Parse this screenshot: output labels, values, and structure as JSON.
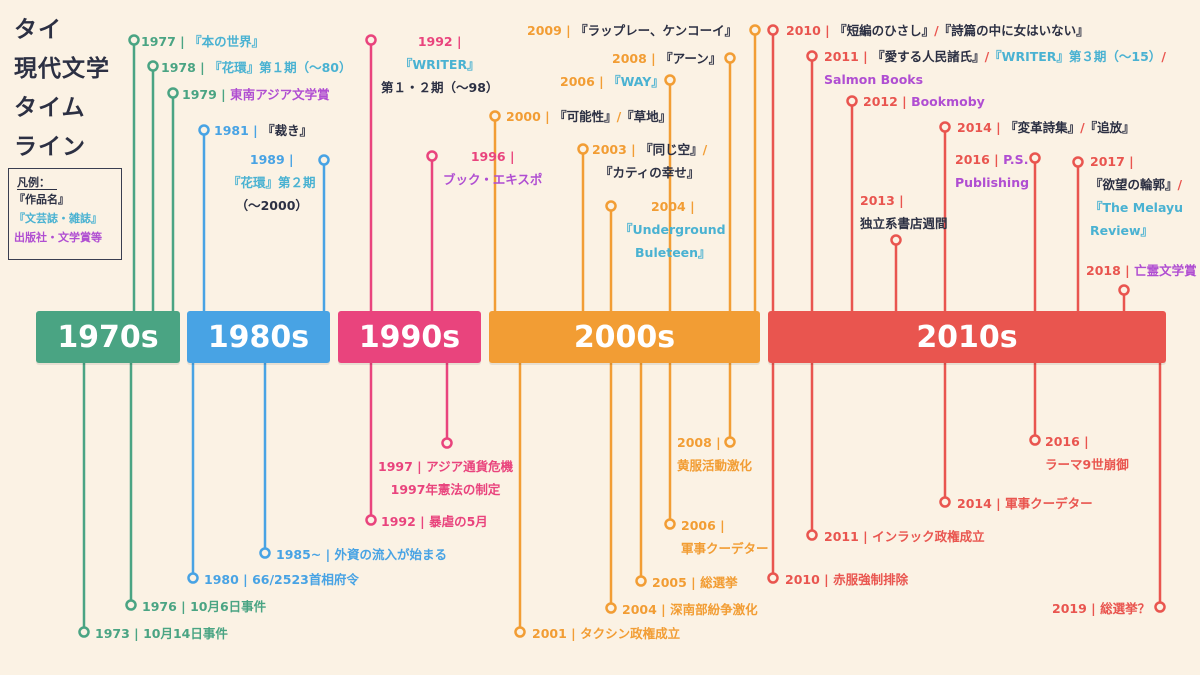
{
  "title": [
    "タイ",
    "現代文学",
    "タイム",
    "ライン"
  ],
  "legend": {
    "heading": "凡例：",
    "work": "『作品名』",
    "magazine": "『文芸誌・雑誌』",
    "publisher": "出版社・文学賞等"
  },
  "colors": {
    "background": "#fbf2e4",
    "1970s": "#4aa483",
    "1980s": "#48a3e4",
    "1990s": "#e9447d",
    "2000s": "#f29d34",
    "2010s": "#e9554f",
    "text_dark": "#2c3043",
    "work": "#2c3043",
    "magazine": "#4ab2d2",
    "publisher": "#b04ed2"
  },
  "decades": [
    "1970s",
    "1980s",
    "1990s",
    "2000s",
    "2010s"
  ],
  "events": [
    {
      "lines": [
        "1977 | 『本の世界』"
      ]
    },
    {
      "lines": [
        "1978 | 『花環』第１期（〜80）"
      ]
    },
    {
      "lines": [
        "1979 | 東南アジア文学賞"
      ]
    },
    {
      "lines": [
        "1981 | 『裁き』"
      ]
    },
    {
      "lines": [
        "1989 |",
        "『花環』第２期",
        "（〜2000）"
      ]
    },
    {
      "lines": [
        "1992 |",
        "『WRITER』",
        "第１・２期（〜98）"
      ]
    },
    {
      "lines": [
        "1996 |",
        "ブック・エキスポ"
      ]
    },
    {
      "lines": [
        "2000 | 『可能性』/『草地』"
      ]
    },
    {
      "lines": [
        "2003 | 『同じ空』/",
        "『カティの幸せ』"
      ]
    },
    {
      "lines": [
        "2004 |",
        "『Underground",
        "Buleteen』"
      ]
    },
    {
      "lines": [
        "2006 | 『WAY』"
      ]
    },
    {
      "lines": [
        "2008 | 『アーン』"
      ]
    },
    {
      "lines": [
        "2009 | 『ラップレー、ケンコーイ』"
      ]
    },
    {
      "lines": [
        "2010 | 『短編のひさし』/『詩篇の中に女はいない』"
      ]
    },
    {
      "lines": [
        "2011 | 『愛する人民諸氏』/『WRITER』第３期（〜15）/",
        "Salmon Books"
      ]
    },
    {
      "lines": [
        "2012 | Bookmoby"
      ]
    },
    {
      "lines": [
        "2013 |",
        "独立系書店週間"
      ]
    },
    {
      "lines": [
        "2014 | 『変革詩集』/『追放』"
      ]
    },
    {
      "lines": [
        "2016 | P.S.",
        "Publishing"
      ]
    },
    {
      "lines": [
        "2017 |",
        "『欲望の輪郭』/",
        "『The Melayu",
        "Review』"
      ]
    },
    {
      "lines": [
        "2018 | 亡霊文学賞"
      ]
    },
    {
      "lines": [
        "1973 | 10月14日事件"
      ]
    },
    {
      "lines": [
        "1976 | 10月6日事件"
      ]
    },
    {
      "lines": [
        "1980 | 66/2523首相府令"
      ]
    },
    {
      "lines": [
        "1985~ | 外資の流入が始まる"
      ]
    },
    {
      "lines": [
        "1992 | 暴虐の5月"
      ]
    },
    {
      "lines": [
        "1997 | アジア通貨危機",
        "1997年憲法の制定"
      ]
    },
    {
      "lines": [
        "2001 | タクシン政権成立"
      ]
    },
    {
      "lines": [
        "2004 | 深南部紛争激化"
      ]
    },
    {
      "lines": [
        "2005 | 総選挙"
      ]
    },
    {
      "lines": [
        "2006 |",
        "軍事クーデター"
      ]
    },
    {
      "lines": [
        "2008 |",
        "黄服活動激化"
      ]
    },
    {
      "lines": [
        "2010 | 赤服強制排除"
      ]
    },
    {
      "lines": [
        "2011 | インラック政権成立"
      ]
    },
    {
      "lines": [
        "2014 | 軍事クーデター"
      ]
    },
    {
      "lines": [
        "2016 |",
        "ラーマ9世崩御"
      ]
    },
    {
      "lines": [
        "2019 | 総選挙？"
      ]
    }
  ]
}
